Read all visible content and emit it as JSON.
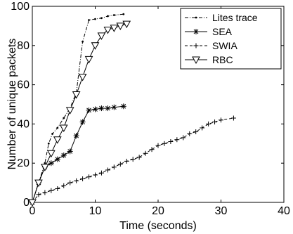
{
  "chart_data": {
    "type": "line",
    "xlabel": "Time (seconds)",
    "ylabel": "Number of unique packets",
    "xlim": [
      0,
      40
    ],
    "ylim": [
      0,
      100
    ],
    "xticks": [
      0,
      10,
      20,
      30,
      40
    ],
    "yticks": [
      0,
      20,
      40,
      60,
      80,
      100
    ],
    "grid": false,
    "legend_position": "top-right",
    "series": [
      {
        "name": "Lites trace",
        "style": "dashdot-dot",
        "x": [
          0,
          1,
          2,
          2.6,
          3.2,
          4,
          5,
          6,
          7,
          8,
          9,
          10,
          11,
          12,
          13,
          14.5
        ],
        "y": [
          0,
          10,
          20,
          30,
          35,
          38,
          43,
          48,
          56,
          82,
          93,
          93.5,
          94,
          95,
          95.5,
          96
        ]
      },
      {
        "name": "SEA",
        "style": "solid-asterisk",
        "x": [
          0,
          1,
          2,
          3,
          4,
          5,
          6,
          7,
          8,
          9,
          10,
          11,
          12,
          13,
          14.5
        ],
        "y": [
          0,
          10,
          18,
          20,
          22,
          24,
          26,
          34,
          41,
          47,
          47.5,
          48,
          48,
          48.5,
          49
        ]
      },
      {
        "name": "SWIA",
        "style": "dashed-plus",
        "x": [
          0,
          1,
          2,
          3,
          4,
          5,
          6,
          7,
          8,
          9,
          10,
          11,
          12,
          13,
          14,
          15,
          16,
          17,
          18,
          19,
          20,
          21,
          22,
          23,
          24,
          25,
          26,
          27,
          28,
          29,
          30,
          32
        ],
        "y": [
          0,
          4,
          5,
          6,
          7,
          8.5,
          10,
          11,
          12,
          13,
          14,
          15,
          16.5,
          18,
          19.5,
          21,
          22,
          23,
          25,
          27,
          29,
          30,
          31,
          32,
          33,
          35,
          36,
          38,
          40,
          41,
          42,
          43
        ]
      },
      {
        "name": "RBC",
        "style": "solid-triangle",
        "x": [
          0,
          1,
          2,
          3,
          4,
          5,
          6,
          7,
          8,
          9,
          10,
          11,
          12,
          13,
          14,
          15
        ],
        "y": [
          0,
          10,
          18,
          25,
          32,
          38,
          47,
          55,
          64,
          73,
          80,
          85,
          88,
          89,
          90,
          91
        ]
      }
    ]
  }
}
